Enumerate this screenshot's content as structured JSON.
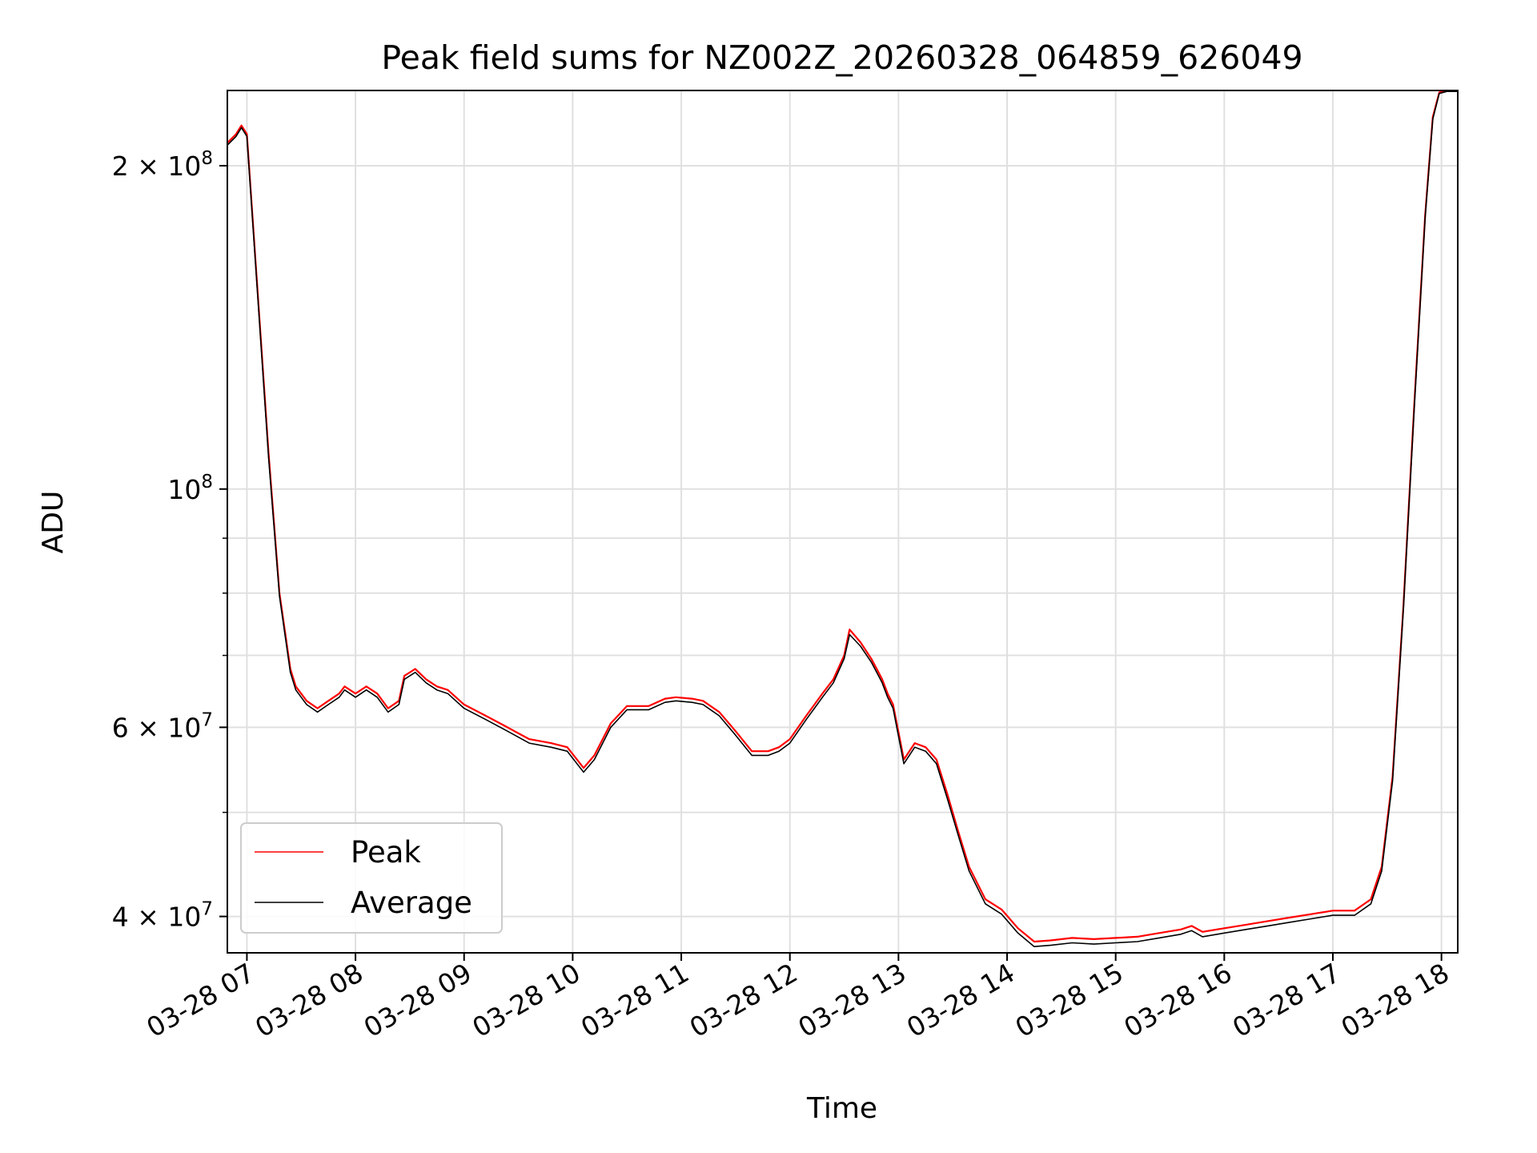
{
  "chart_data": {
    "type": "line",
    "title": "Peak field sums for NZ002Z_20260328_064859_626049",
    "xlabel": "Time",
    "ylabel": "ADU",
    "yscale": "log",
    "xlim_hours": [
      6.82,
      18.15
    ],
    "ylim": [
      37000000,
      235000000
    ],
    "grid": true,
    "legend_position": "lower-left",
    "x_ticks": [
      {
        "value": 7,
        "label": "03-28 07"
      },
      {
        "value": 8,
        "label": "03-28 08"
      },
      {
        "value": 9,
        "label": "03-28 09"
      },
      {
        "value": 10,
        "label": "03-28 10"
      },
      {
        "value": 11,
        "label": "03-28 11"
      },
      {
        "value": 12,
        "label": "03-28 12"
      },
      {
        "value": 13,
        "label": "03-28 13"
      },
      {
        "value": 14,
        "label": "03-28 14"
      },
      {
        "value": 15,
        "label": "03-28 15"
      },
      {
        "value": 16,
        "label": "03-28 16"
      },
      {
        "value": 17,
        "label": "03-28 17"
      },
      {
        "value": 18,
        "label": "03-28 18"
      }
    ],
    "y_major_ticks": [
      {
        "value": 40000000,
        "mantissa": "4",
        "exponent": "7",
        "label": "4 × 10^7"
      },
      {
        "value": 60000000,
        "mantissa": "6",
        "exponent": "7",
        "label": "6 × 10^7"
      },
      {
        "value": 100000000,
        "mantissa": "",
        "exponent": "8",
        "label": "10^8"
      },
      {
        "value": 200000000,
        "mantissa": "2",
        "exponent": "8",
        "label": "2 × 10^8"
      }
    ],
    "y_minor_ticks": [
      50000000,
      70000000,
      80000000,
      90000000
    ],
    "series": [
      {
        "name": "Peak",
        "color": "#ff0000",
        "x": [
          6.82,
          6.9,
          6.95,
          7.0,
          7.1,
          7.2,
          7.3,
          7.4,
          7.45,
          7.55,
          7.65,
          7.75,
          7.85,
          7.9,
          8.0,
          8.1,
          8.2,
          8.3,
          8.4,
          8.45,
          8.55,
          8.65,
          8.75,
          8.85,
          9.0,
          9.2,
          9.4,
          9.6,
          9.8,
          9.95,
          10.1,
          10.2,
          10.35,
          10.5,
          10.7,
          10.85,
          10.95,
          11.1,
          11.2,
          11.35,
          11.5,
          11.65,
          11.8,
          11.9,
          12.0,
          12.15,
          12.3,
          12.4,
          12.5,
          12.55,
          12.65,
          12.75,
          12.8,
          12.85,
          12.9,
          12.95,
          13.05,
          13.15,
          13.25,
          13.35,
          13.45,
          13.55,
          13.65,
          13.8,
          13.95,
          14.1,
          14.25,
          14.4,
          14.6,
          14.8,
          15.0,
          15.2,
          15.4,
          15.6,
          15.7,
          15.8,
          16.0,
          16.2,
          16.4,
          16.6,
          16.8,
          17.0,
          17.2,
          17.35,
          17.45,
          17.55,
          17.65,
          17.75,
          17.85,
          17.92,
          17.98,
          18.05,
          18.15
        ],
        "values": [
          210000000,
          214000000,
          218000000,
          214000000,
          152000000,
          108000000,
          80000000,
          68000000,
          65500000,
          63500000,
          62500000,
          63500000,
          64500000,
          65500000,
          64500000,
          65500000,
          64500000,
          62500000,
          63500000,
          67000000,
          68000000,
          66500000,
          65500000,
          65000000,
          63000000,
          61500000,
          60000000,
          58500000,
          58000000,
          57500000,
          55000000,
          56500000,
          60500000,
          62800000,
          62800000,
          63800000,
          64000000,
          63800000,
          63500000,
          62000000,
          59500000,
          57000000,
          57000000,
          57500000,
          58500000,
          61500000,
          64500000,
          66500000,
          70000000,
          74000000,
          72000000,
          69500000,
          68000000,
          66500000,
          64500000,
          63000000,
          56000000,
          58000000,
          57500000,
          56000000,
          52000000,
          48000000,
          44500000,
          41500000,
          40600000,
          39000000,
          37900000,
          38000000,
          38200000,
          38100000,
          38200000,
          38300000,
          38600000,
          38900000,
          39200000,
          38700000,
          39000000,
          39300000,
          39600000,
          39900000,
          40200000,
          40500000,
          40500000,
          41500000,
          44500000,
          54000000,
          78000000,
          120000000,
          180000000,
          222000000,
          234000000,
          235000000,
          235000000
        ]
      },
      {
        "name": "Average",
        "color": "#000000",
        "x": [
          6.82,
          6.9,
          6.95,
          7.0,
          7.1,
          7.2,
          7.3,
          7.4,
          7.45,
          7.55,
          7.65,
          7.75,
          7.85,
          7.9,
          8.0,
          8.1,
          8.2,
          8.3,
          8.4,
          8.45,
          8.55,
          8.65,
          8.75,
          8.85,
          9.0,
          9.2,
          9.4,
          9.6,
          9.8,
          9.95,
          10.1,
          10.2,
          10.35,
          10.5,
          10.7,
          10.85,
          10.95,
          11.1,
          11.2,
          11.35,
          11.5,
          11.65,
          11.8,
          11.9,
          12.0,
          12.15,
          12.3,
          12.4,
          12.5,
          12.55,
          12.65,
          12.75,
          12.8,
          12.85,
          12.9,
          12.95,
          13.05,
          13.15,
          13.25,
          13.35,
          13.45,
          13.55,
          13.65,
          13.8,
          13.95,
          14.1,
          14.25,
          14.4,
          14.6,
          14.8,
          15.0,
          15.2,
          15.4,
          15.6,
          15.7,
          15.8,
          16.0,
          16.2,
          16.4,
          16.6,
          16.8,
          17.0,
          17.2,
          17.35,
          17.45,
          17.55,
          17.65,
          17.75,
          17.85,
          17.92,
          17.98,
          18.05,
          18.15
        ],
        "values": [
          209000000,
          213000000,
          217000000,
          213000000,
          151000000,
          107000000,
          79500000,
          67500000,
          65000000,
          63000000,
          62000000,
          63000000,
          64000000,
          65000000,
          64000000,
          65000000,
          64000000,
          62000000,
          63000000,
          66500000,
          67500000,
          66000000,
          65000000,
          64500000,
          62500000,
          61000000,
          59500000,
          58000000,
          57500000,
          57000000,
          54500000,
          56000000,
          60000000,
          62300000,
          62300000,
          63300000,
          63500000,
          63300000,
          63000000,
          61500000,
          59000000,
          56500000,
          56500000,
          57000000,
          58000000,
          61000000,
          64000000,
          66000000,
          69500000,
          73200000,
          71400000,
          69000000,
          67500000,
          66000000,
          64000000,
          62500000,
          55500000,
          57500000,
          57000000,
          55500000,
          51500000,
          47600000,
          44100000,
          41100000,
          40200000,
          38600000,
          37500000,
          37600000,
          37800000,
          37700000,
          37800000,
          37900000,
          38200000,
          38500000,
          38800000,
          38300000,
          38600000,
          38900000,
          39200000,
          39500000,
          39800000,
          40100000,
          40100000,
          41100000,
          44100000,
          53500000,
          77500000,
          119000000,
          179000000,
          221000000,
          233500000,
          234500000,
          234500000
        ]
      }
    ]
  }
}
